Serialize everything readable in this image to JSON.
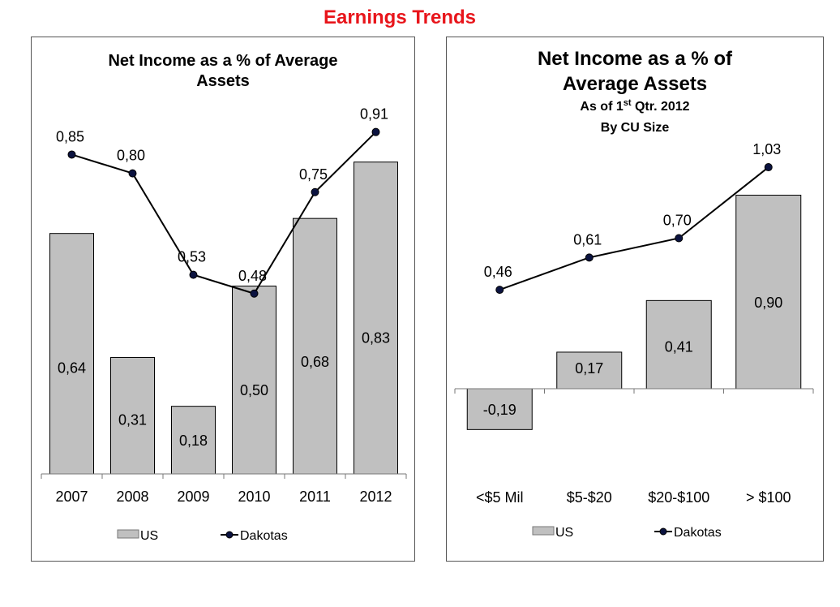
{
  "page_title": "Earnings Trends",
  "chart_data": [
    {
      "type": "bar",
      "title": "Net Income as a % of Average Assets",
      "title_lines": [
        "Net Income as a % of Average",
        "Assets"
      ],
      "categories": [
        "2007",
        "2008",
        "2009",
        "2010",
        "2011",
        "2012"
      ],
      "series": [
        {
          "name": "US",
          "type": "bar",
          "values": [
            0.64,
            0.31,
            0.18,
            0.5,
            0.68,
            0.83
          ],
          "labels": [
            "0,64",
            "0,31",
            "0,18",
            "0,50",
            "0,68",
            "0,83"
          ],
          "color": "#c0c0c0"
        },
        {
          "name": "Dakotas",
          "type": "line",
          "values": [
            0.85,
            0.8,
            0.53,
            0.48,
            0.75,
            0.91
          ],
          "labels": [
            "0,85",
            "0,80",
            "0,53",
            "0,48",
            "0,75",
            "0,91"
          ],
          "color": "#000000"
        }
      ],
      "legend": "bottom",
      "grid": false
    },
    {
      "type": "bar",
      "title": "Net Income as a % of Average Assets",
      "title_lines": [
        "Net Income as a % of",
        "Average Assets"
      ],
      "subtitle_prefix": "As of 1",
      "subtitle_sup": "st",
      "subtitle_suffix": " Qtr. 2012",
      "subtitle2": "By CU Size",
      "categories": [
        "<$5 Mil",
        "$5-$20",
        "$20-$100",
        "> $100"
      ],
      "series": [
        {
          "name": "US",
          "type": "bar",
          "values": [
            -0.19,
            0.17,
            0.41,
            0.9
          ],
          "labels": [
            "-0,19",
            "0,17",
            "0,41",
            "0,90"
          ],
          "color": "#c0c0c0"
        },
        {
          "name": "Dakotas",
          "type": "line",
          "values": [
            0.46,
            0.61,
            0.7,
            1.03
          ],
          "labels": [
            "0,46",
            "0,61",
            "0,70",
            "1,03"
          ],
          "color": "#000000"
        }
      ],
      "legend": "bottom",
      "grid": false
    }
  ]
}
